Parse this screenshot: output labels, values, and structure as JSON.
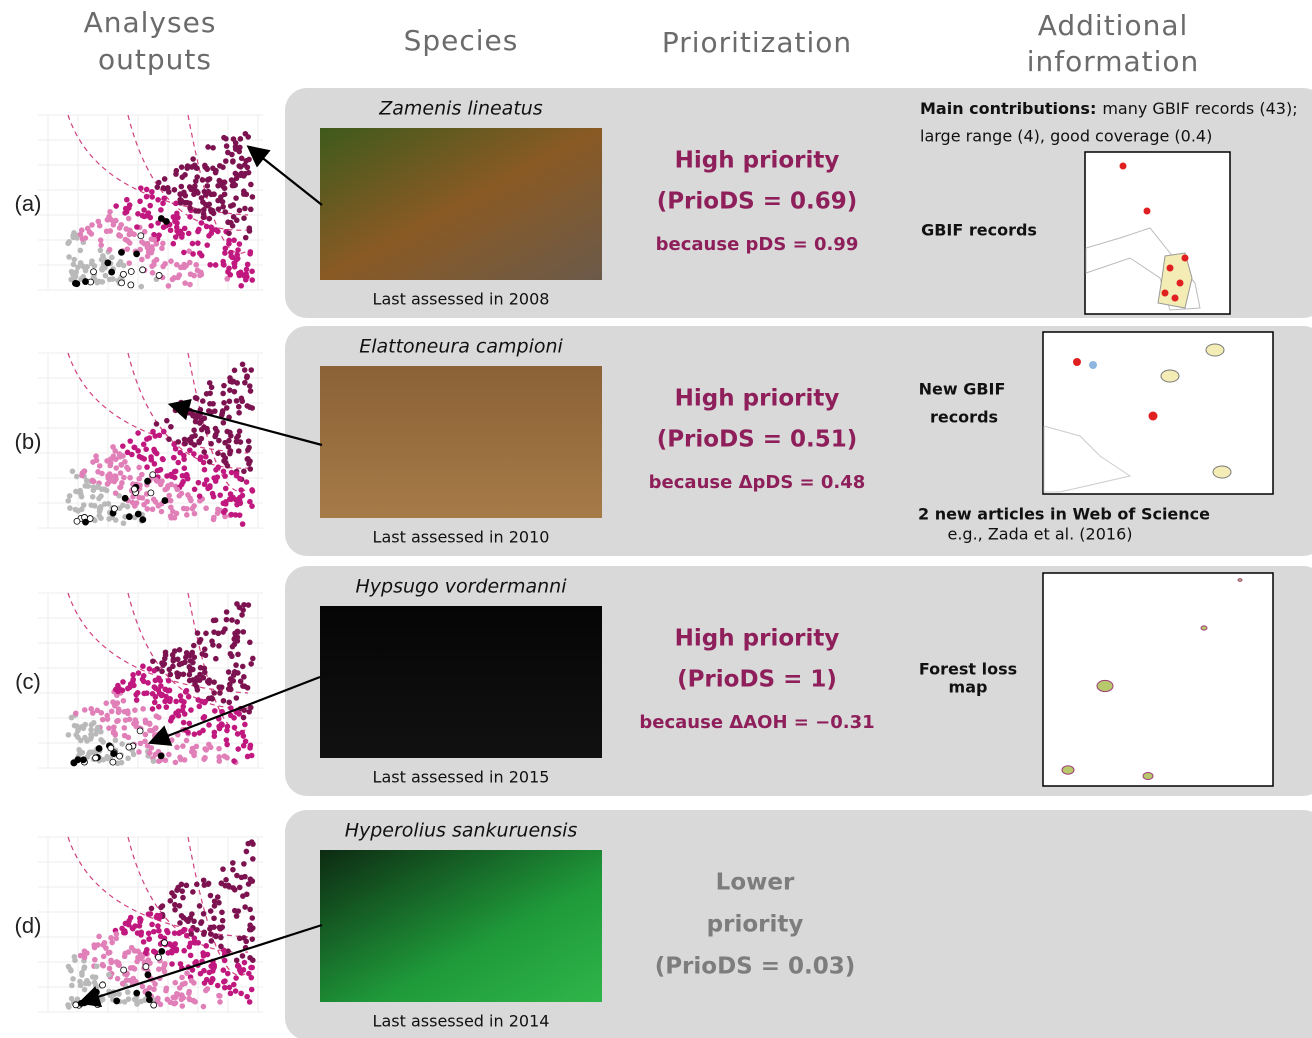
{
  "headers": {
    "analyses": [
      "Analyses",
      "outputs"
    ],
    "species": "Species",
    "prioritization": "Prioritization",
    "additional": [
      "Additional",
      "information"
    ]
  },
  "rows": [
    {
      "label": "(a)",
      "species": "Zamenis lineatus",
      "assessed": "Last assessed in 2008",
      "priority": [
        "High priority",
        "(PrioDS = 0.69)"
      ],
      "because": "because pDS = 0.99",
      "info": {
        "bold": "Main contributions:",
        "text": [
          "many GBIF records (43);",
          "large range (4), good coverage (0.4)"
        ],
        "map_label": [
          "GBIF records"
        ]
      }
    },
    {
      "label": "(b)",
      "species": "Elattoneura campioni",
      "assessed": "Last assessed in 2010",
      "priority": [
        "High priority",
        "(PrioDS = 0.51)"
      ],
      "because": "because ΔpDS = 0.48",
      "info": {
        "map_label": [
          "New GBIF",
          "records"
        ],
        "articles": "2 new articles in Web of Science",
        "example": "e.g., Zada et al. (2016)"
      }
    },
    {
      "label": "(c)",
      "species": "Hypsugo vordermanni",
      "assessed": "Last assessed in 2015",
      "priority": [
        "High priority",
        "(PrioDS = 1)"
      ],
      "because": "because ΔAOH =  −0.31",
      "info": {
        "map_label": [
          "Forest loss",
          "map"
        ]
      }
    },
    {
      "label": "(d)",
      "species": "Hyperolius sankuruensis",
      "assessed": "Last assessed in 2014",
      "priority": [
        "Lower",
        "priority",
        "(PrioDS = 0.03)"
      ]
    }
  ]
}
